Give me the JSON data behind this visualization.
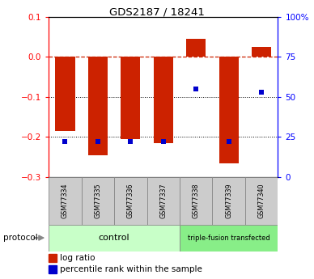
{
  "title": "GDS2187 / 18241",
  "samples": [
    "GSM77334",
    "GSM77335",
    "GSM77336",
    "GSM77337",
    "GSM77338",
    "GSM77339",
    "GSM77340"
  ],
  "log_ratios": [
    -0.185,
    -0.245,
    -0.205,
    -0.215,
    0.045,
    -0.265,
    0.025
  ],
  "percentile_ranks": [
    22,
    22,
    22,
    22,
    55,
    22,
    53
  ],
  "bar_color": "#cc2200",
  "dot_color": "#0000cc",
  "ylim_left": [
    -0.3,
    0.1
  ],
  "right_yticks": [
    0,
    25,
    50,
    75,
    100
  ],
  "right_yticklabels": [
    "0",
    "25",
    "50",
    "75",
    "100%"
  ],
  "ctrl_color": "#c8ffc8",
  "triple_color": "#88ee88",
  "gray_box_color": "#cccccc",
  "hline_zero_color": "#cc2200",
  "ctrl_n": 4,
  "triple_n": 3
}
